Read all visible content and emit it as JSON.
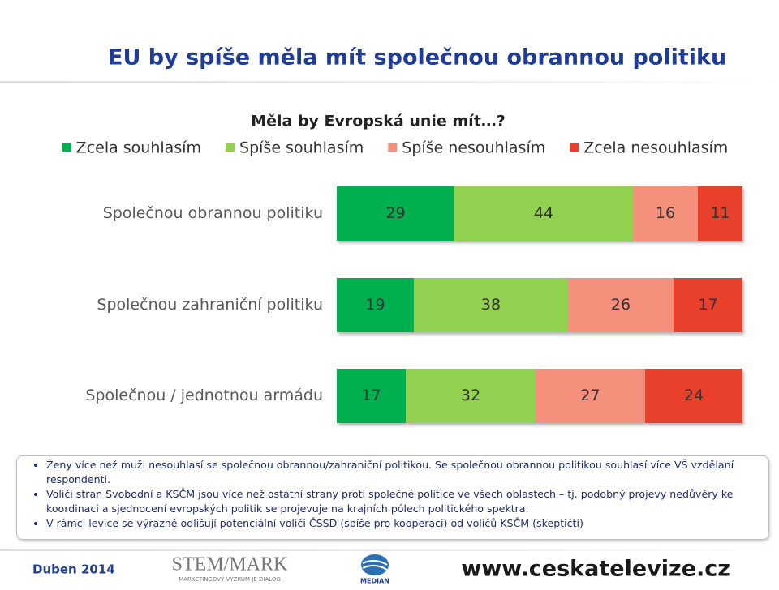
{
  "slide": {
    "title": "EU by spíše měla mít společnou obrannou politiku"
  },
  "chart_data": {
    "type": "stacked_bar_horizontal",
    "title": "Měla by Evropská unie mít…?",
    "categories": [
      "Společnou obrannou politiku",
      "Společnou zahraniční politiku",
      "Společnou / jednotnou armádu"
    ],
    "series": [
      {
        "name": "Zcela souhlasím",
        "color": "#00b050",
        "values": [
          29,
          19,
          17
        ]
      },
      {
        "name": "Spíše souhlasím",
        "color": "#92d050",
        "values": [
          44,
          38,
          32
        ]
      },
      {
        "name": "Spíše nesouhlasím",
        "color": "#f4907c",
        "values": [
          16,
          26,
          27
        ]
      },
      {
        "name": "Zcela nesouhlasím",
        "color": "#e8402a",
        "values": [
          11,
          17,
          24
        ]
      }
    ]
  },
  "notes": [
    "Ženy více než muži nesouhlasí se společnou obrannou/zahraniční politikou. Se společnou obrannou politikou souhlasí více VŠ vzdělaní respondenti.",
    "Voliči stran Svobodní a KSČM jsou více než ostatní strany proti společné politice ve všech oblastech – tj. podobný projevy nedůvěry ke koordinaci a sjednocení evropských politik se projevuje na krajních pólech politického spektra.",
    "V rámci levice se výrazně odlišují potenciální voliči ČSSD (spíše pro kooperaci) od voličů KSČM (skeptičtí)"
  ],
  "footer": {
    "date": "Duben 2014",
    "logo1": "STEM/MARK",
    "logo1_sub": "MARKETINGOVÝ VÝZKUM JE DIALOG",
    "logo2": "MEDIAN",
    "url": "www.ceskatelevize.cz"
  }
}
